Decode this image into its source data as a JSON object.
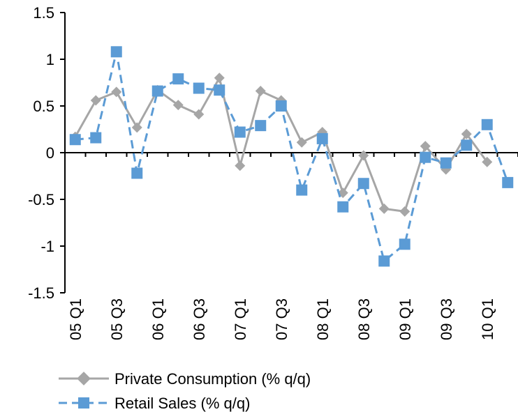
{
  "chart_data": {
    "type": "line",
    "title": "",
    "xlabel": "",
    "ylabel": "",
    "ylim": [
      -1.5,
      1.5
    ],
    "yticks": [
      "1.5",
      "1",
      "0.5",
      "0",
      "-0.5",
      "-1",
      "-1.5"
    ],
    "categories": [
      "05 Q1",
      "05 Q2",
      "05 Q3",
      "05 Q4",
      "06 Q1",
      "06 Q2",
      "06 Q3",
      "06 Q4",
      "07 Q1",
      "07 Q2",
      "07 Q3",
      "07 Q4",
      "08 Q1",
      "08 Q2",
      "08 Q3",
      "08 Q4",
      "09 Q1",
      "09 Q2",
      "09 Q3",
      "09 Q4",
      "10 Q1",
      "10 Q2"
    ],
    "x_tick_labels": [
      "05 Q1",
      "05 Q3",
      "06 Q1",
      "06 Q3",
      "07 Q1",
      "07 Q3",
      "08 Q1",
      "08 Q3",
      "09 Q1",
      "09 Q3",
      "10 Q1"
    ],
    "grid": false,
    "legend_position": "bottom",
    "series": [
      {
        "name": "Private Consumption (% q/q)",
        "color": "#a6a6a6",
        "style": "solid",
        "marker": "diamond",
        "values": [
          0.17,
          0.56,
          0.65,
          0.27,
          0.67,
          0.51,
          0.41,
          0.8,
          -0.14,
          0.66,
          0.56,
          0.11,
          0.22,
          -0.43,
          -0.03,
          -0.6,
          -0.63,
          0.07,
          -0.18,
          0.2,
          -0.1,
          null
        ]
      },
      {
        "name": "Retail Sales (% q/q)",
        "color": "#5b9bd5",
        "style": "dashed",
        "marker": "square",
        "values": [
          0.14,
          0.16,
          1.08,
          -0.22,
          0.66,
          0.79,
          0.69,
          0.67,
          0.22,
          0.29,
          0.5,
          -0.4,
          0.15,
          -0.58,
          -0.33,
          -1.16,
          -0.98,
          -0.05,
          -0.11,
          0.08,
          0.3,
          -0.32
        ]
      }
    ]
  }
}
